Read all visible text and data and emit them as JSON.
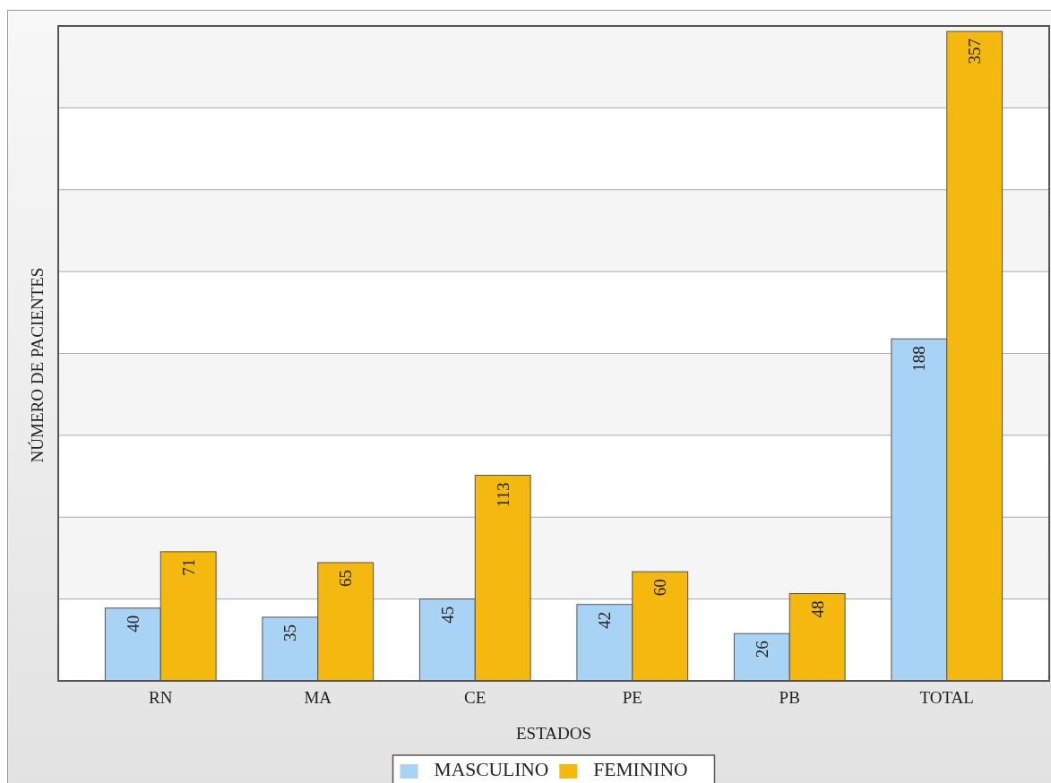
{
  "chart_data": {
    "type": "bar",
    "xlabel": "ESTADOS",
    "ylabel": "NÚMERO DE PACIENTES",
    "categories": [
      "RN",
      "MA",
      "CE",
      "PE",
      "PB",
      "TOTAL"
    ],
    "series": [
      {
        "name": "MASCULINO",
        "color": "#a9d3f5",
        "values": [
          40,
          35,
          45,
          42,
          26,
          188
        ]
      },
      {
        "name": "FEMININO",
        "color": "#f5b80f",
        "values": [
          71,
          65,
          113,
          60,
          48,
          357
        ]
      }
    ],
    "ylim": [
      0,
      360
    ],
    "yticks": [
      {
        "value": 0,
        "label": null
      },
      {
        "value": 45,
        "label": null
      },
      {
        "value": 90,
        "label": null
      },
      {
        "value": 135,
        "label": null
      },
      {
        "value": 180,
        "label": null
      },
      {
        "value": 225,
        "label": null
      },
      {
        "value": 270,
        "label": null
      },
      {
        "value": 315,
        "label": null
      },
      {
        "value": 360,
        "label": null
      }
    ],
    "tick_labels": "x",
    "grid": "y",
    "legend": "bottom",
    "data_labels": true
  }
}
